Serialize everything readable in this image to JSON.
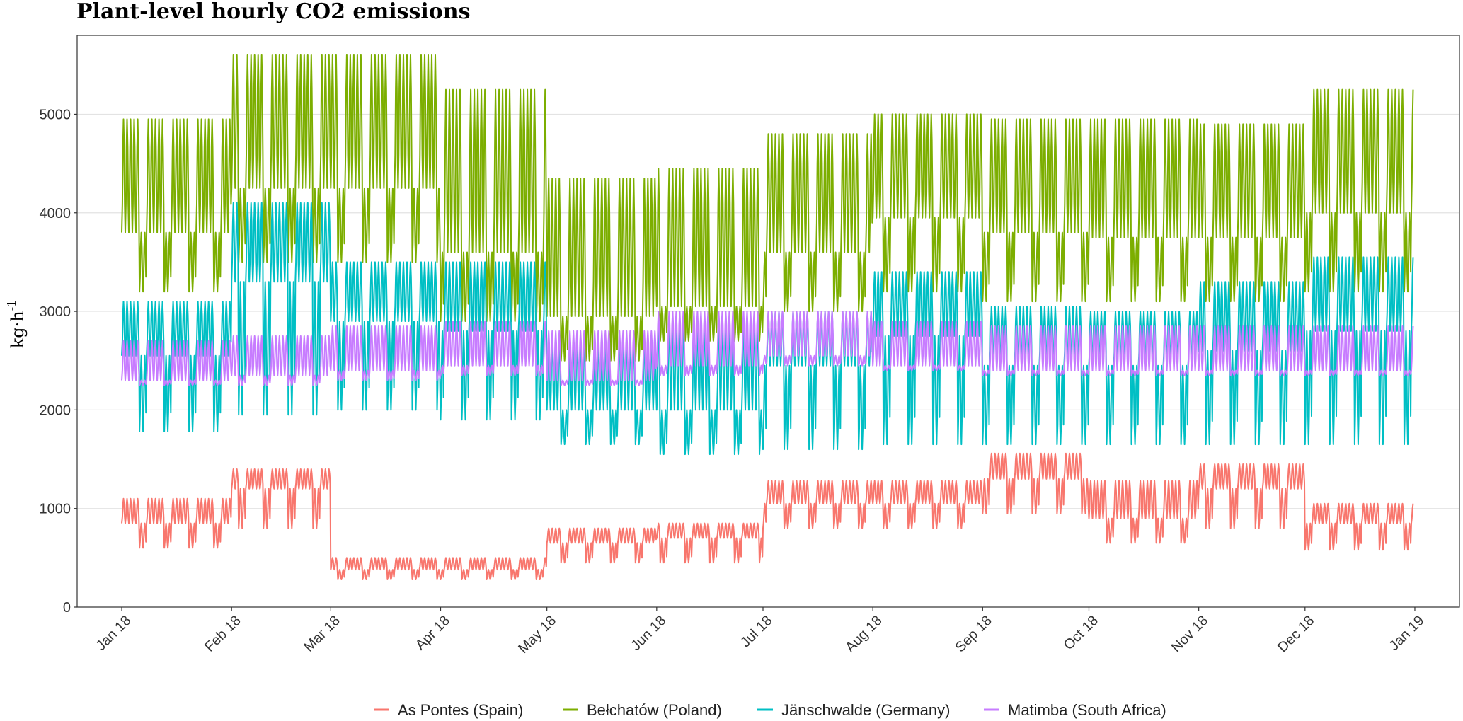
{
  "chart_data": {
    "type": "line",
    "title": "Plant-level hourly CO2 emissions",
    "ylabel": "kg·h⁻¹",
    "ylabel_base": "kg·h",
    "ylabel_exp": "-1",
    "xlabel": "",
    "ylim": [
      0,
      5800
    ],
    "y_ticks": [
      0,
      1000,
      2000,
      3000,
      4000,
      5000
    ],
    "x_domain": [
      "2018-01-01",
      "2019-01-01"
    ],
    "x_ticks": [
      {
        "date": "2018-01-01",
        "label": "Jan 18"
      },
      {
        "date": "2018-02-01",
        "label": "Feb 18"
      },
      {
        "date": "2018-03-01",
        "label": "Mar 18"
      },
      {
        "date": "2018-04-01",
        "label": "Apr 18"
      },
      {
        "date": "2018-05-01",
        "label": "May 18"
      },
      {
        "date": "2018-06-01",
        "label": "Jun 18"
      },
      {
        "date": "2018-07-01",
        "label": "Jul 18"
      },
      {
        "date": "2018-08-01",
        "label": "Aug 18"
      },
      {
        "date": "2018-09-01",
        "label": "Sep 18"
      },
      {
        "date": "2018-10-01",
        "label": "Oct 18"
      },
      {
        "date": "2018-11-01",
        "label": "Nov 18"
      },
      {
        "date": "2018-12-01",
        "label": "Dec 18"
      },
      {
        "date": "2019-01-01",
        "label": "Jan 19"
      }
    ],
    "grid": true,
    "legend_position": "bottom",
    "series": [
      {
        "name": "Bełchatów (Poland)",
        "color": "#7CAE00",
        "monthly_peak": [
          4950,
          5600,
          5600,
          5250,
          4350,
          4450,
          4800,
          5000,
          4950,
          4950,
          4900,
          5250,
          5200
        ],
        "monthly_low": [
          3800,
          4250,
          4250,
          3600,
          2950,
          3050,
          3600,
          3950,
          3800,
          3750,
          3750,
          4000,
          4000
        ],
        "weekend_dip": [
          3200,
          3500,
          3500,
          2900,
          2500,
          2700,
          3000,
          3200,
          3100,
          3100,
          3100,
          3200,
          3200
        ]
      },
      {
        "name": "Jänschwalde (Germany)",
        "color": "#00BFC4",
        "monthly_peak": [
          3100,
          4100,
          3500,
          3500,
          2750,
          2950,
          3000,
          3400,
          3050,
          3000,
          3300,
          3550,
          2800
        ],
        "monthly_low": [
          2550,
          3300,
          2900,
          2800,
          2000,
          2000,
          2450,
          2750,
          2450,
          2450,
          2600,
          2800,
          2200
        ],
        "weekend_dip": [
          1780,
          1950,
          2000,
          1900,
          1650,
          1550,
          1600,
          1650,
          1650,
          1650,
          1650,
          1650,
          1650
        ]
      },
      {
        "name": "Matimba (South Africa)",
        "color": "#C77CFF",
        "monthly_peak": [
          2700,
          2750,
          2850,
          2900,
          2800,
          3000,
          3000,
          2900,
          2850,
          2850,
          2850,
          2850,
          2550
        ],
        "monthly_low": [
          2300,
          2350,
          2400,
          2450,
          2300,
          2450,
          2550,
          2450,
          2400,
          2400,
          2400,
          2400,
          2250
        ],
        "weekend_dip": [
          2250,
          2250,
          2300,
          2350,
          2250,
          2350,
          2450,
          2400,
          2350,
          2350,
          2350,
          2350,
          2200
        ]
      },
      {
        "name": "As Pontes (Spain)",
        "color": "#F8766D",
        "monthly_peak": [
          1100,
          1400,
          500,
          500,
          800,
          850,
          1280,
          1280,
          1560,
          1280,
          1450,
          1050,
          1050
        ],
        "monthly_low": [
          850,
          1200,
          380,
          380,
          650,
          700,
          1050,
          1050,
          1300,
          900,
          1200,
          850,
          850
        ],
        "weekend_dip": [
          600,
          800,
          280,
          280,
          450,
          450,
          800,
          800,
          950,
          650,
          800,
          580,
          580
        ]
      }
    ],
    "legend": [
      {
        "name": "As Pontes (Spain)",
        "color": "#F8766D"
      },
      {
        "name": "Bełchatów (Poland)",
        "color": "#7CAE00"
      },
      {
        "name": "Jänschwalde (Germany)",
        "color": "#00BFC4"
      },
      {
        "name": "Matimba (South Africa)",
        "color": "#C77CFF"
      }
    ]
  }
}
